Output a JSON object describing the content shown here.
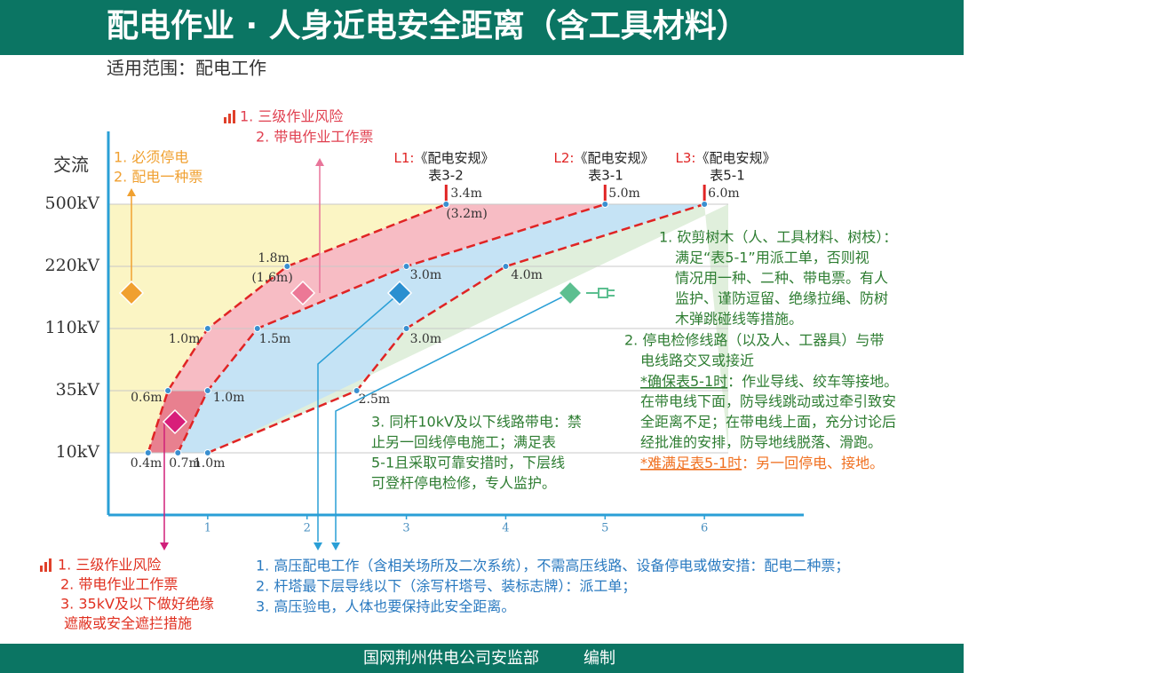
{
  "header": {
    "title": "配电作业 · 人身近电安全距离（含工具材料）",
    "scope": "适用范围：配电工作"
  },
  "chart_data": {
    "type": "line",
    "y_title": "交流",
    "categories": [
      "10kV",
      "35kV",
      "110kV",
      "220kV",
      "500kV"
    ],
    "xlim": [
      0,
      7
    ],
    "xticks": [
      1,
      2,
      3,
      4,
      5,
      6
    ],
    "series": [
      {
        "code": "L1:",
        "name": "《配电安规》",
        "table": "表3-2",
        "color": "#e02424",
        "values": [
          0.4,
          0.6,
          1.0,
          1.8,
          3.4
        ],
        "value_labels": [
          "0.4m",
          "0.6m",
          "1.0m",
          "1.8m",
          "3.4m"
        ],
        "alt_labels": [
          null,
          null,
          null,
          "(1.6m)",
          "(3.2m)"
        ]
      },
      {
        "code": "L2:",
        "name": "《配电安规》",
        "table": "表3-1",
        "color": "#e02424",
        "values": [
          0.7,
          1.0,
          1.5,
          3.0,
          5.0
        ],
        "value_labels": [
          "0.7m",
          "1.0m",
          "1.5m",
          "3.0m",
          "5.0m"
        ]
      },
      {
        "code": "L3:",
        "name": "《配电安规》",
        "table": "表5-1",
        "color": "#e02424",
        "values": [
          1.0,
          2.5,
          3.0,
          4.0,
          6.0
        ],
        "value_labels": [
          "1.0m",
          "2.5m",
          "3.0m",
          "4.0m",
          "6.0m"
        ]
      }
    ]
  },
  "annotations": {
    "orange": [
      "1. 必须停电",
      "2. 配电一种票"
    ],
    "pink_top": [
      "1. 三级作业风险",
      "2. 带电作业工作票"
    ],
    "red_bottom": [
      "1. 三级作业风险",
      "2. 带电作业工作票",
      "3. 35kV及以下做好绝缘",
      "遮蔽或安全遮拦措施"
    ],
    "blue_bottom": [
      "1. 高压配电工作（含相关场所及二次系统），不需高压线路、设备停电或做安措：配电二种票；",
      "2. 杆塔最下层导线以下（涂写杆塔号、装标志牌）：派工单；",
      "3. 高压验电，人体也要保持此安全距离。"
    ],
    "green_middle": [
      "3. 同杆10kV及以下线路带电：禁",
      "止另一回线停电施工；满足表",
      "5-1且采取可靠安措时，下层线",
      "可登杆停电检修，专人监护。"
    ],
    "green_right_1": [
      "1. 砍剪树木（人、工具材料、树枝）：",
      "满足“表5-1”用派工单，否则视",
      "情况用一种、二种、带电票。有人",
      "监护、谨防逗留、绝缘拉绳、防树",
      "木弹跳碰线等措施。"
    ],
    "green_right_2": [
      "2. 停电检修线路（以及人、工器具）与带",
      "电线路交叉或接近"
    ],
    "green_right_3": [
      {
        "em": "*确保表5-1时",
        "text": "：作业导线、绞车等接地。"
      },
      "在带电线下面，防导线跳动或过牵引致安",
      "全距离不足；在带电线上面，充分讨论后",
      "经批准的安排，防导地线脱落、滑跑。",
      {
        "em": "*难满足表5-1时",
        "text": "：另一回停电、接地。"
      }
    ]
  },
  "footer": {
    "org": "国网荆州供电公司安监部",
    "role": "编制"
  }
}
